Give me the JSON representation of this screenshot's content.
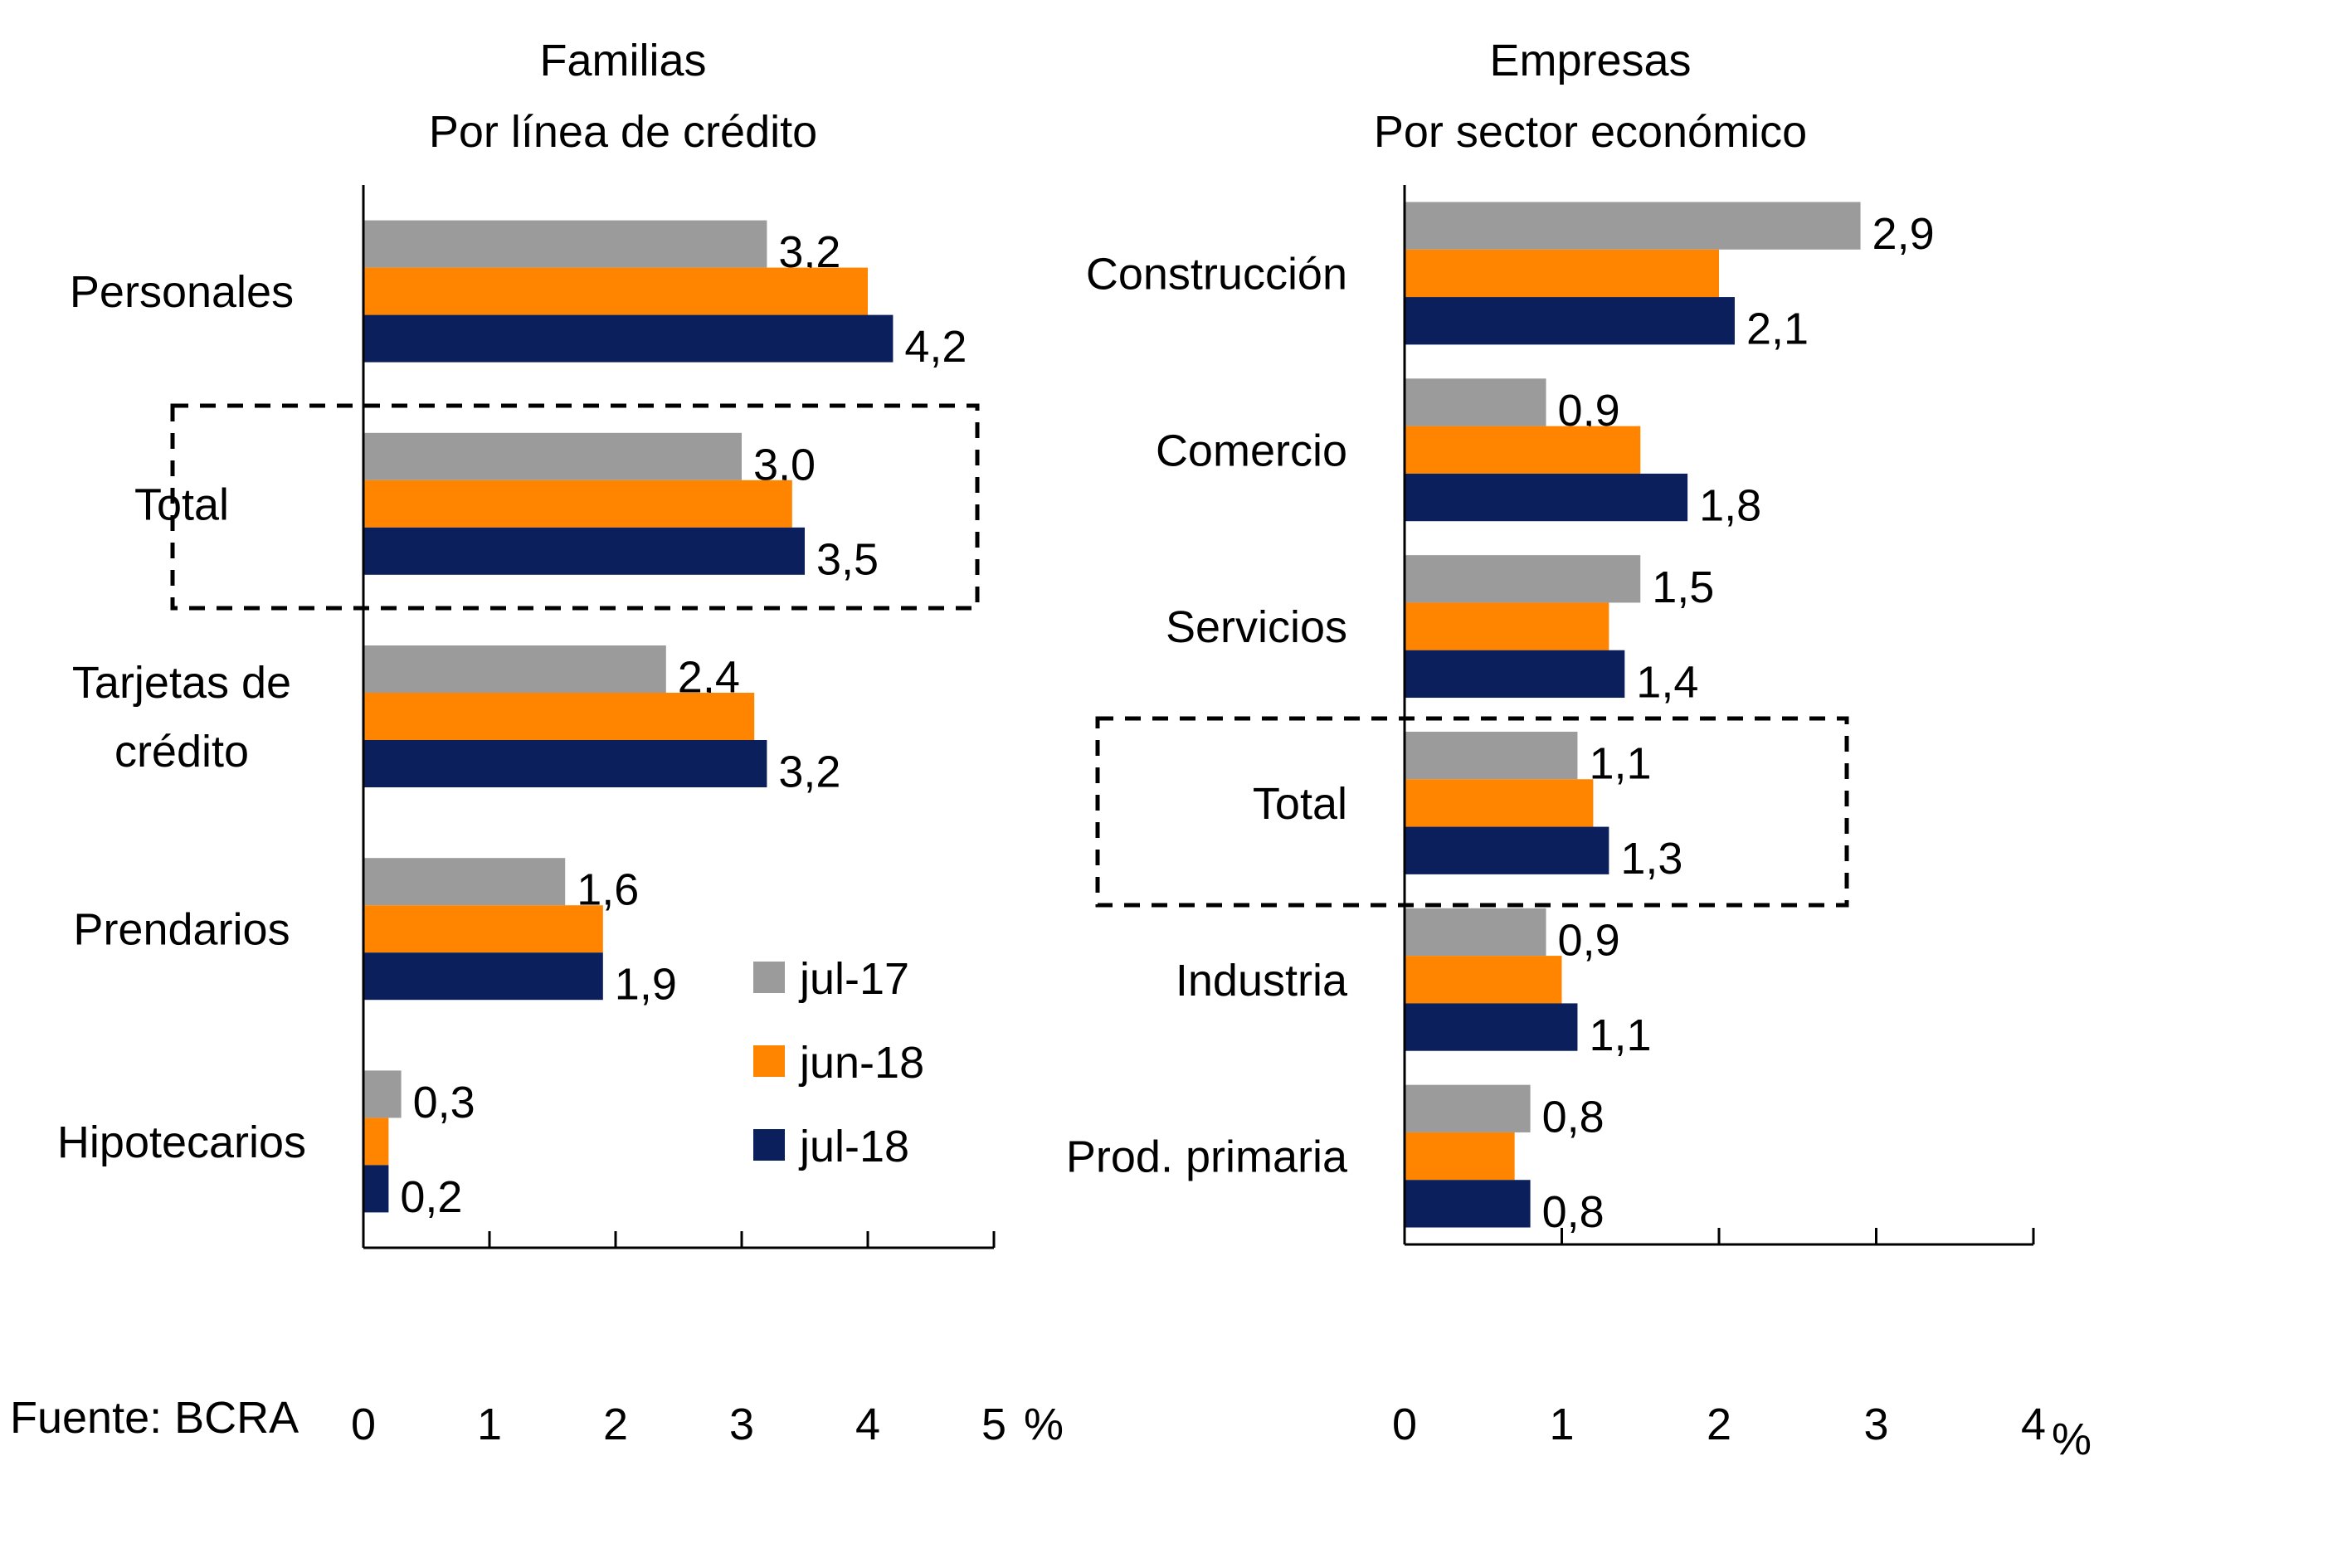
{
  "source": "Fuente: BCRA",
  "colors": {
    "jul-17": "#9b9b9b",
    "jun-18": "#ff8400",
    "jul-18": "#0a1f5c",
    "axis": "#000000"
  },
  "legend": [
    {
      "label": "jul-17",
      "color": "#9b9b9b"
    },
    {
      "label": "jun-18",
      "color": "#ff8400"
    },
    {
      "label": "jul-18",
      "color": "#0a1f5c"
    }
  ],
  "chart_data": [
    {
      "type": "bar",
      "orientation": "horizontal",
      "title": "Familias",
      "subtitle": "Por línea de crédito",
      "xlabel": "",
      "ylabel": "",
      "xlim": [
        0,
        5
      ],
      "xticks": [
        "0",
        "1",
        "2",
        "3",
        "4",
        "5"
      ],
      "unit_label": "%",
      "grid": false,
      "legend_position": "bottom-right",
      "categories": [
        "Personales",
        "Total",
        "Tarjetas de crédito",
        "Prendarios",
        "Hipotecarios"
      ],
      "category_lines": [
        [
          "Personales"
        ],
        [
          "Total"
        ],
        [
          "Tarjetas de",
          "crédito"
        ],
        [
          "Prendarios"
        ],
        [
          "Hipotecarios"
        ]
      ],
      "highlighted_category": "Total",
      "series": [
        {
          "name": "jul-17",
          "values": [
            3.2,
            3.0,
            2.4,
            1.6,
            0.3
          ],
          "labels": [
            "3,2",
            "3,0",
            "2,4",
            "1,6",
            "0,3"
          ]
        },
        {
          "name": "jun-18",
          "values": [
            4.0,
            3.4,
            3.1,
            1.9,
            0.2
          ],
          "labels": null
        },
        {
          "name": "jul-18",
          "values": [
            4.2,
            3.5,
            3.2,
            1.9,
            0.2
          ],
          "labels": [
            "4,2",
            "3,5",
            "3,2",
            "1,9",
            "0,2"
          ]
        }
      ]
    },
    {
      "type": "bar",
      "orientation": "horizontal",
      "title": "Empresas",
      "subtitle": "Por sector económico",
      "xlabel": "",
      "ylabel": "",
      "xlim": [
        0,
        4
      ],
      "xticks": [
        "0",
        "1",
        "2",
        "3",
        "4"
      ],
      "unit_label": "%",
      "grid": false,
      "legend_position": "none",
      "categories": [
        "Construcción",
        "Comercio",
        "Servicios",
        "Total",
        "Industria",
        "Prod. primaria"
      ],
      "category_lines": [
        [
          "Construcción"
        ],
        [
          "Comercio"
        ],
        [
          "Servicios"
        ],
        [
          "Total"
        ],
        [
          "Industria"
        ],
        [
          "Prod. primaria"
        ]
      ],
      "highlighted_category": "Total",
      "series": [
        {
          "name": "jul-17",
          "values": [
            2.9,
            0.9,
            1.5,
            1.1,
            0.9,
            0.8
          ],
          "labels": [
            "2,9",
            "0,9",
            "1,5",
            "1,1",
            "0,9",
            "0,8"
          ]
        },
        {
          "name": "jun-18",
          "values": [
            2.0,
            1.5,
            1.3,
            1.2,
            1.0,
            0.7
          ],
          "labels": null
        },
        {
          "name": "jul-18",
          "values": [
            2.1,
            1.8,
            1.4,
            1.3,
            1.1,
            0.8
          ],
          "labels": [
            "2,1",
            "1,8",
            "1,4",
            "1,3",
            "1,1",
            "0,8"
          ]
        }
      ]
    }
  ]
}
